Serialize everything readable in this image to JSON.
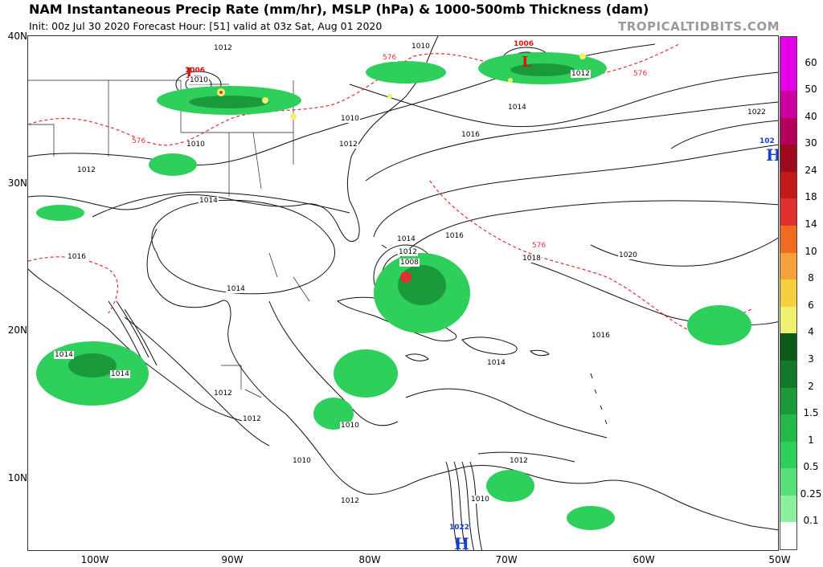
{
  "header": {
    "title": "NAM Instantaneous Precip Rate (mm/hr), MSLP (hPa) & 1000-500mb Thickness (dam)",
    "subtitle": "Init: 00z Jul 30 2020   Forecast Hour: [51]   valid at 03z Sat, Aug 01 2020",
    "brand": "TROPICALTIDBITS.COM"
  },
  "axes": {
    "lat_labels": [
      "40N",
      "30N",
      "20N",
      "10N"
    ],
    "lon_labels": [
      "100W",
      "90W",
      "80W",
      "70W",
      "60W",
      "50W"
    ]
  },
  "colorbar": {
    "labels": [
      "60",
      "50",
      "40",
      "30",
      "24",
      "18",
      "14",
      "10",
      "8",
      "6",
      "4",
      "3",
      "2",
      "1.5",
      "1",
      "0.5",
      "0.25",
      "0.1"
    ],
    "colors": [
      "#e600e6",
      "#cc00a0",
      "#b3005a",
      "#9b0a1e",
      "#c21a1a",
      "#e03030",
      "#f06a20",
      "#f5a03a",
      "#f7d040",
      "#f0f070",
      "#0b5a1a",
      "#12782a",
      "#1a9a3a",
      "#22b84a",
      "#2fcf5c",
      "#55e07a",
      "#8cf0a0",
      "#ffffff"
    ]
  },
  "pressure_centers": [
    {
      "type": "L",
      "value": "1006",
      "color": "#d11"
    },
    {
      "type": "L",
      "value": "1006",
      "color": "#d11"
    },
    {
      "type": "H",
      "value": "102",
      "color": "#1a3fd1"
    },
    {
      "type": "H",
      "value": "1022",
      "color": "#1a3fd1"
    }
  ],
  "isobar_labels": [
    "1012",
    "1012",
    "1010",
    "1010",
    "1012",
    "1012",
    "1010",
    "1014",
    "1016",
    "1014",
    "1016",
    "1018",
    "1020",
    "1022",
    "1016",
    "1014",
    "1014",
    "1014",
    "1012",
    "1010",
    "1010",
    "1012",
    "1010",
    "1012",
    "1016",
    "1014",
    "1014",
    "1012",
    "1008",
    "1012",
    "1010"
  ],
  "thickness_labels": [
    "576",
    "576",
    "576",
    "576"
  ]
}
